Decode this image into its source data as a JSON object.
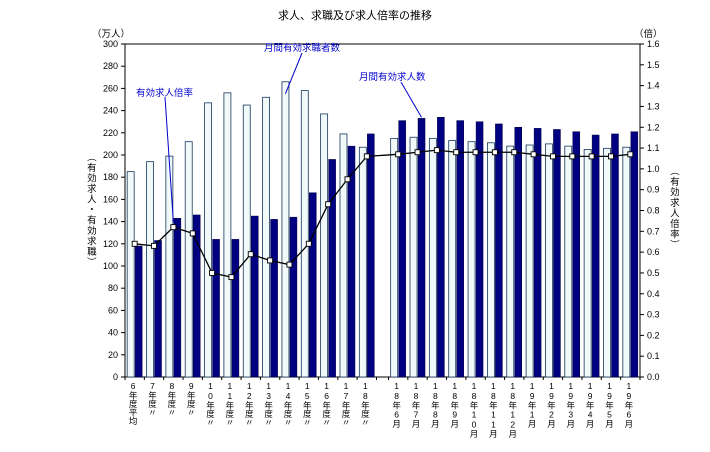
{
  "title": "求人、求職及び求人倍率の推移",
  "left_unit": "（万人）",
  "right_unit": "（倍）",
  "left_axis_title": "（有効求人・有効求職）",
  "right_axis_title": "（有効求人倍率）",
  "annotations": {
    "ratio": "有効求人倍率",
    "seekers": "月間有効求職者数",
    "offers": "月間有効求人数"
  },
  "colors": {
    "seekers_bar_fill": "#f2faf9",
    "seekers_bar_stroke": "#16365c",
    "offers_bar_fill": "#000080",
    "offers_bar_stroke": "#000040",
    "ratio_line": "#000000",
    "marker_fill": "#ffffff",
    "marker_stroke": "#000000",
    "annotation_text": "#0000cc",
    "plot_border": "#000000",
    "axis_text": "#000000"
  },
  "chart_data": {
    "type": "bar",
    "title": "求人、求職及び求人倍率の推移",
    "categories": [
      "6年度平均",
      "7年度〃",
      "8年度〃",
      "9年度〃",
      "10年度〃",
      "11年度〃",
      "12年度〃",
      "13年度〃",
      "14年度〃",
      "15年度〃",
      "16年度〃",
      "17年度〃",
      "18年度〃",
      "18年6月",
      "18年7月",
      "18年8月",
      "18年9月",
      "18年10月",
      "18年11月",
      "18年12月",
      "19年1月",
      "19年2月",
      "19年3月",
      "19年4月",
      "19年5月",
      "19年6月"
    ],
    "series": [
      {
        "name": "月間有効求職者数",
        "type": "bar",
        "axis": "left",
        "values": [
          185,
          194,
          199,
          212,
          247,
          256,
          245,
          252,
          266,
          258,
          237,
          219,
          207,
          215,
          216,
          215,
          213,
          212,
          211,
          208,
          209,
          210,
          208,
          205,
          206,
          207
        ]
      },
      {
        "name": "月間有効求人数",
        "type": "bar",
        "axis": "left",
        "values": [
          118,
          123,
          143,
          146,
          124,
          124,
          145,
          142,
          144,
          166,
          196,
          208,
          219,
          231,
          233,
          234,
          231,
          230,
          228,
          225,
          224,
          223,
          221,
          218,
          219,
          221
        ]
      },
      {
        "name": "有効求人倍率",
        "type": "line",
        "axis": "right",
        "values": [
          0.64,
          0.63,
          0.72,
          0.69,
          0.5,
          0.48,
          0.59,
          0.56,
          0.54,
          0.64,
          0.83,
          0.95,
          1.06,
          1.07,
          1.08,
          1.09,
          1.08,
          1.08,
          1.08,
          1.08,
          1.07,
          1.06,
          1.06,
          1.06,
          1.06,
          1.07
        ]
      }
    ],
    "left_axis": {
      "unit": "（万人）",
      "label": "（有効求人・有効求職）",
      "min": 0,
      "max": 300,
      "step": 20
    },
    "right_axis": {
      "unit": "（倍）",
      "label": "（有効求人倍率）",
      "min": 0.0,
      "max": 1.6,
      "step": 0.1
    },
    "gap_after_index": 12,
    "grid": false,
    "legend_position": "in-plot-annotations"
  }
}
